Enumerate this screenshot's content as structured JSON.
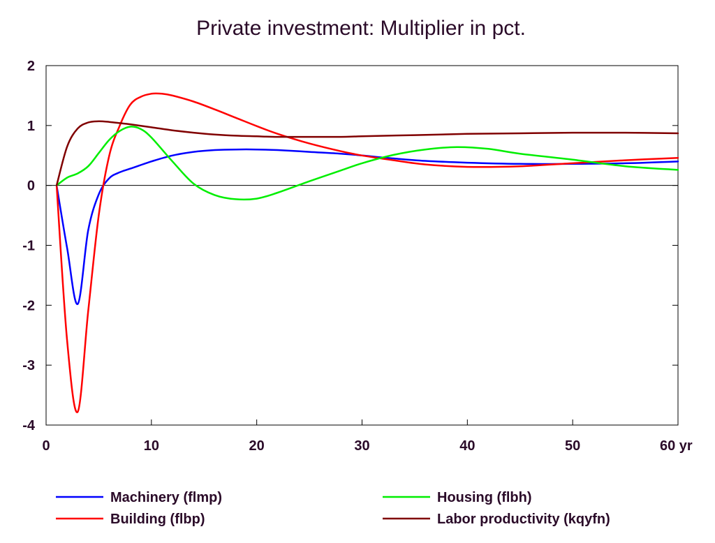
{
  "chart_data": {
    "type": "line",
    "title": "Private investment: Multiplier in pct.",
    "xlabel": "",
    "ylabel": "",
    "xlim": [
      0,
      60
    ],
    "ylim": [
      -4,
      2
    ],
    "x_ticks": [
      0,
      10,
      20,
      30,
      40,
      50,
      60
    ],
    "x_tick_labels": [
      "0",
      "10",
      "20",
      "30",
      "40",
      "50",
      "60 yr"
    ],
    "y_ticks": [
      2,
      1,
      0,
      -1,
      -2,
      -3,
      -4
    ],
    "y_tick_labels": [
      "2",
      "1",
      "0",
      "-1",
      "-2",
      "-3",
      "-4"
    ],
    "zero_line": true,
    "grid": false,
    "legend_position": "bottom",
    "series": [
      {
        "name": "Machinery (flmp)",
        "color": "#0000ff",
        "x": [
          1,
          2,
          3,
          4,
          5,
          6,
          7,
          8,
          10,
          12,
          14,
          16,
          18,
          20,
          22,
          25,
          28,
          30,
          33,
          36,
          40,
          45,
          50,
          55,
          60
        ],
        "y": [
          0,
          -1.05,
          -1.98,
          -0.75,
          -0.15,
          0.12,
          0.22,
          0.28,
          0.4,
          0.5,
          0.56,
          0.59,
          0.6,
          0.6,
          0.59,
          0.56,
          0.53,
          0.5,
          0.45,
          0.41,
          0.38,
          0.36,
          0.36,
          0.37,
          0.4
        ]
      },
      {
        "name": "Building (flbp)",
        "color": "#ff0000",
        "x": [
          1,
          2,
          3,
          4,
          5,
          6,
          7,
          8,
          9,
          10,
          11,
          12,
          14,
          16,
          18,
          20,
          22,
          25,
          28,
          30,
          33,
          36,
          40,
          45,
          50,
          55,
          60
        ],
        "y": [
          0,
          -2.6,
          -3.78,
          -2.1,
          -0.5,
          0.5,
          1.0,
          1.35,
          1.48,
          1.53,
          1.53,
          1.5,
          1.4,
          1.27,
          1.13,
          0.99,
          0.86,
          0.7,
          0.57,
          0.5,
          0.42,
          0.35,
          0.31,
          0.32,
          0.37,
          0.42,
          0.46
        ]
      },
      {
        "name": "Housing (flbh)",
        "color": "#00ee00",
        "x": [
          1,
          2,
          3,
          4,
          5,
          6,
          7,
          8,
          9,
          10,
          12,
          14,
          16,
          18,
          20,
          22,
          25,
          28,
          30,
          33,
          36,
          39,
          42,
          45,
          50,
          55,
          60
        ],
        "y": [
          0,
          0.13,
          0.2,
          0.32,
          0.54,
          0.76,
          0.91,
          0.98,
          0.94,
          0.8,
          0.4,
          0.03,
          -0.16,
          -0.23,
          -0.22,
          -0.12,
          0.07,
          0.25,
          0.37,
          0.51,
          0.6,
          0.64,
          0.61,
          0.53,
          0.43,
          0.32,
          0.26
        ]
      },
      {
        "name": "Labor productivity (kqyfn)",
        "color": "#800000",
        "x": [
          1,
          2,
          3,
          4,
          5,
          6,
          7,
          8,
          10,
          12,
          14,
          16,
          18,
          20,
          22,
          25,
          28,
          30,
          35,
          40,
          45,
          50,
          55,
          60
        ],
        "y": [
          0,
          0.65,
          0.95,
          1.05,
          1.07,
          1.06,
          1.04,
          1.02,
          0.97,
          0.92,
          0.88,
          0.85,
          0.83,
          0.82,
          0.81,
          0.81,
          0.81,
          0.82,
          0.84,
          0.86,
          0.87,
          0.88,
          0.88,
          0.87
        ]
      }
    ]
  }
}
